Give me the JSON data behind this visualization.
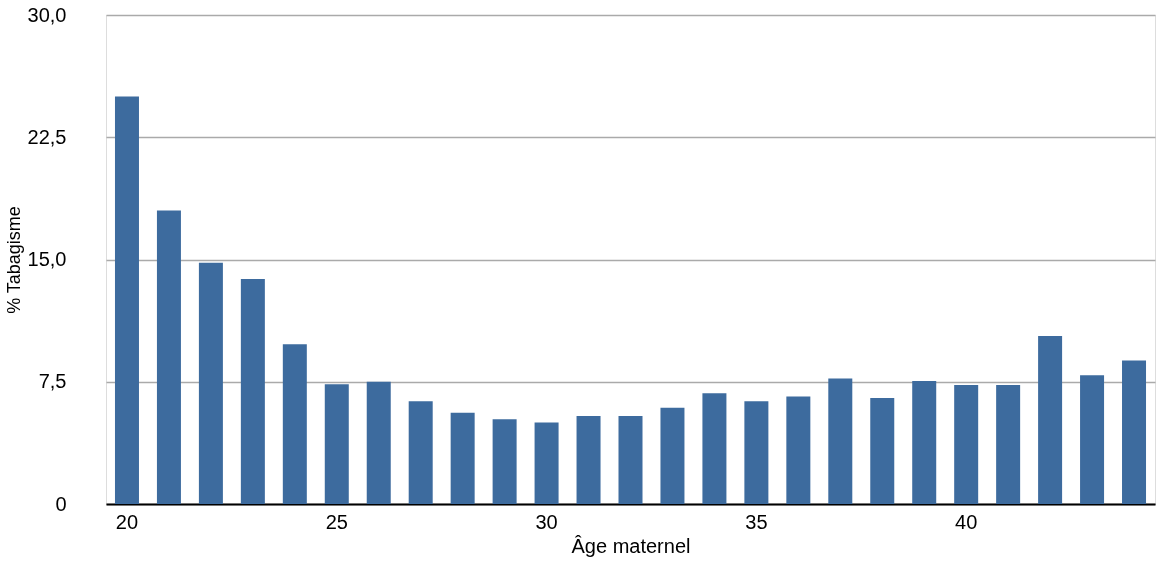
{
  "chart_data": {
    "type": "bar",
    "xlabel": "Âge maternel",
    "ylabel": "% Tabagisme",
    "categories": [
      "20",
      null,
      null,
      null,
      null,
      "25",
      null,
      null,
      null,
      null,
      "30",
      null,
      null,
      null,
      null,
      "35",
      null,
      null,
      null,
      null,
      "40",
      null,
      null,
      null,
      null
    ],
    "values": [
      25.0,
      18.0,
      14.8,
      13.8,
      9.8,
      7.35,
      7.5,
      6.3,
      5.6,
      5.2,
      5.0,
      5.4,
      5.4,
      5.9,
      6.8,
      6.3,
      6.6,
      7.7,
      6.5,
      7.55,
      7.3,
      7.3,
      10.3,
      7.9,
      8.8
    ],
    "color": "#3d6b9e",
    "ylim": [
      0,
      30
    ],
    "yticks": [
      0,
      {
        "value": 7.5,
        "label": "7,5"
      },
      {
        "value": 15,
        "label": "15,0"
      },
      {
        "value": 22.5,
        "label": "22,5"
      },
      {
        "value": 30,
        "label": "30,0"
      }
    ],
    "grid": "y"
  }
}
